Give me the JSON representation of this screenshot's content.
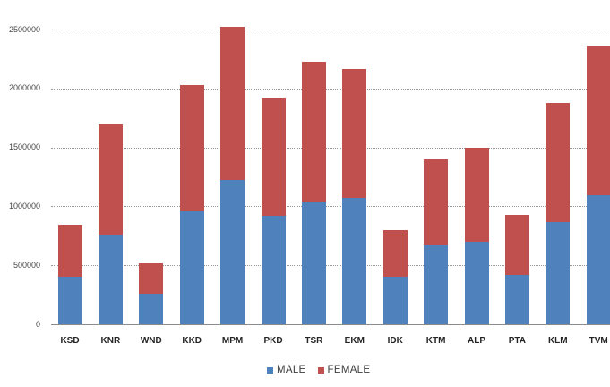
{
  "chart_data": {
    "type": "bar",
    "stacked": true,
    "title": "",
    "xlabel": "",
    "ylabel": "",
    "categories": [
      "KSD",
      "KNR",
      "WND",
      "KKD",
      "MPM",
      "PKD",
      "TSR",
      "EKM",
      "IDK",
      "KTM",
      "ALP",
      "PTA",
      "KLM",
      "TVM"
    ],
    "series": [
      {
        "name": "MALE",
        "color": "#4F81BD",
        "values": [
          400000,
          760000,
          255000,
          960000,
          1220000,
          920000,
          1035000,
          1070000,
          400000,
          680000,
          700000,
          420000,
          870000,
          1095000
        ]
      },
      {
        "name": "FEMALE",
        "color": "#C0504D",
        "values": [
          445000,
          940000,
          265000,
          1070000,
          1300000,
          1005000,
          1195000,
          1095000,
          400000,
          715000,
          800000,
          510000,
          1005000,
          1265000
        ]
      }
    ],
    "y_axis": {
      "min": 0,
      "max": 2500000,
      "step": 500000,
      "tick_labels": [
        "0",
        "500000",
        "1000000",
        "1500000",
        "2000000",
        "2500000"
      ]
    },
    "legend": {
      "position": "bottom-center",
      "items": [
        {
          "label": "MALE",
          "color": "#4F81BD"
        },
        {
          "label": "FEMALE",
          "color": "#C0504D"
        }
      ]
    },
    "grid": true,
    "gridline_color": "#979797",
    "axis_color": "#8c8c8c",
    "background_color": "#FFFFFF"
  }
}
